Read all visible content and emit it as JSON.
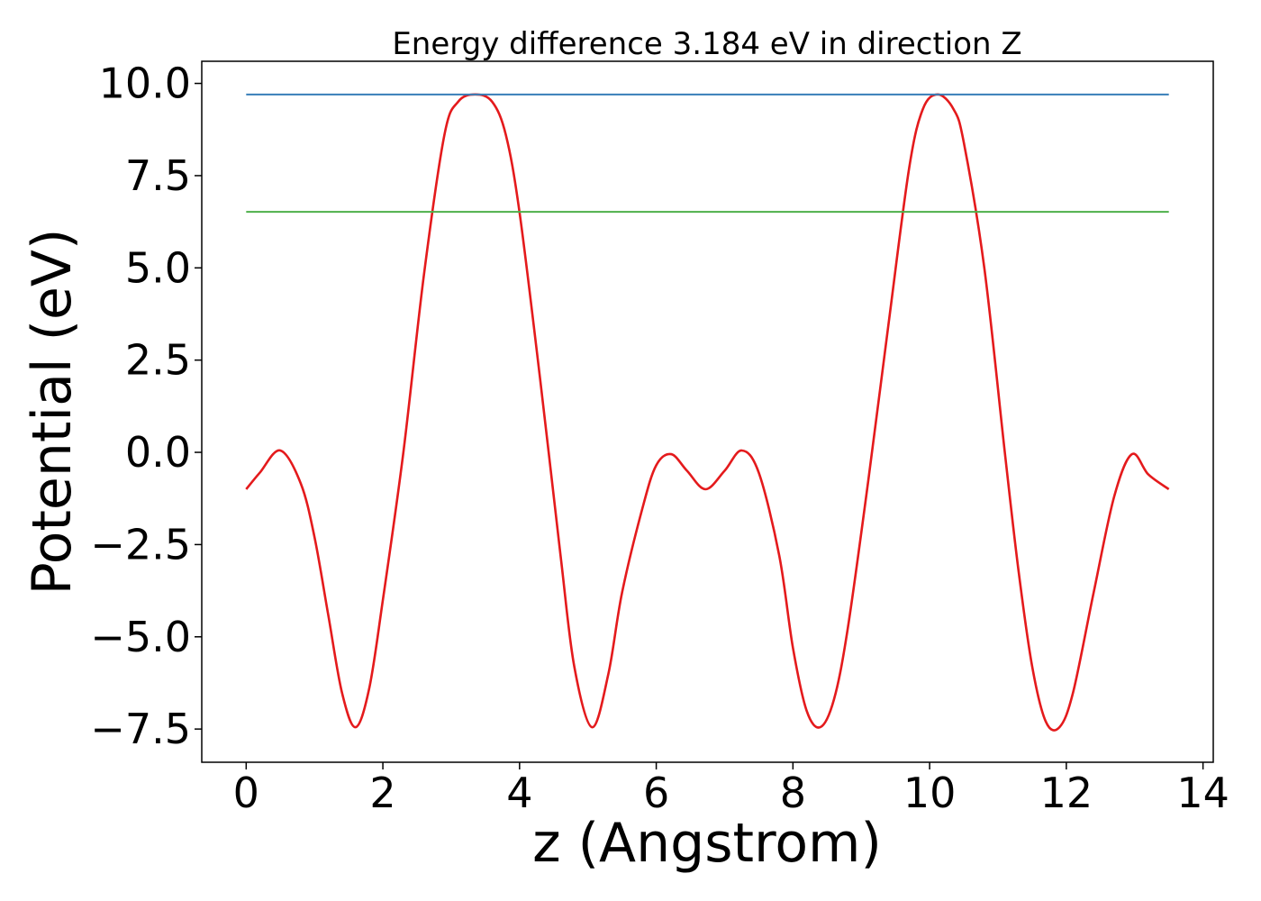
{
  "chart_data": {
    "type": "line",
    "title": "Energy difference 3.184 eV in direction Z",
    "xlabel": "z (Angstrom)",
    "ylabel": "Potential (eV)",
    "xlim": [
      -0.65,
      14.15
    ],
    "ylim": [
      -8.4,
      10.6
    ],
    "xticks": [
      0,
      2,
      4,
      6,
      8,
      10,
      12,
      14
    ],
    "xtick_labels": [
      "0",
      "2",
      "4",
      "6",
      "8",
      "10",
      "12",
      "14"
    ],
    "yticks": [
      -7.5,
      -5.0,
      -2.5,
      0.0,
      2.5,
      5.0,
      7.5,
      10.0
    ],
    "ytick_labels": [
      "−7.5",
      "−5.0",
      "−2.5",
      "0.0",
      "2.5",
      "5.0",
      "7.5",
      "10.0"
    ],
    "grid": false,
    "legend": "none",
    "series": [
      {
        "color": "#e41a1c",
        "x": [
          0,
          0.2,
          0.5,
          0.8,
          1.0,
          1.2,
          1.4,
          1.6,
          1.8,
          2.0,
          2.3,
          2.6,
          2.9,
          3.1,
          3.35,
          3.6,
          3.8,
          4.0,
          4.3,
          4.6,
          4.8,
          5.06,
          5.3,
          5.5,
          5.8,
          6.0,
          6.22,
          6.45,
          6.72,
          7.0,
          7.25,
          7.5,
          7.8,
          8.0,
          8.2,
          8.4,
          8.6,
          8.8,
          9.1,
          9.4,
          9.7,
          9.9,
          10.12,
          10.35,
          10.5,
          10.8,
          11.1,
          11.3,
          11.5,
          11.7,
          11.9,
          12.1,
          12.4,
          12.7,
          12.96,
          13.2,
          13.5
        ],
        "y": [
          -1.0,
          -0.55,
          0.05,
          -0.85,
          -2.3,
          -4.4,
          -6.5,
          -7.45,
          -6.4,
          -4.0,
          0.0,
          4.8,
          8.6,
          9.5,
          9.7,
          9.5,
          8.6,
          6.5,
          2.0,
          -2.8,
          -5.8,
          -7.45,
          -6.0,
          -3.8,
          -1.5,
          -0.35,
          -0.05,
          -0.5,
          -1.0,
          -0.5,
          0.05,
          -0.55,
          -2.8,
          -5.3,
          -7.0,
          -7.45,
          -6.7,
          -4.8,
          -0.8,
          3.5,
          7.7,
          9.3,
          9.7,
          9.3,
          8.4,
          5.0,
          0.0,
          -3.2,
          -5.8,
          -7.3,
          -7.45,
          -6.5,
          -3.8,
          -1.2,
          -0.05,
          -0.6,
          -1.0
        ]
      },
      {
        "color": "#377eb8",
        "x": [
          0,
          13.5
        ],
        "y": [
          9.7,
          9.7
        ]
      },
      {
        "color": "#4daf4a",
        "x": [
          0,
          13.5
        ],
        "y": [
          6.52,
          6.52
        ]
      }
    ]
  }
}
